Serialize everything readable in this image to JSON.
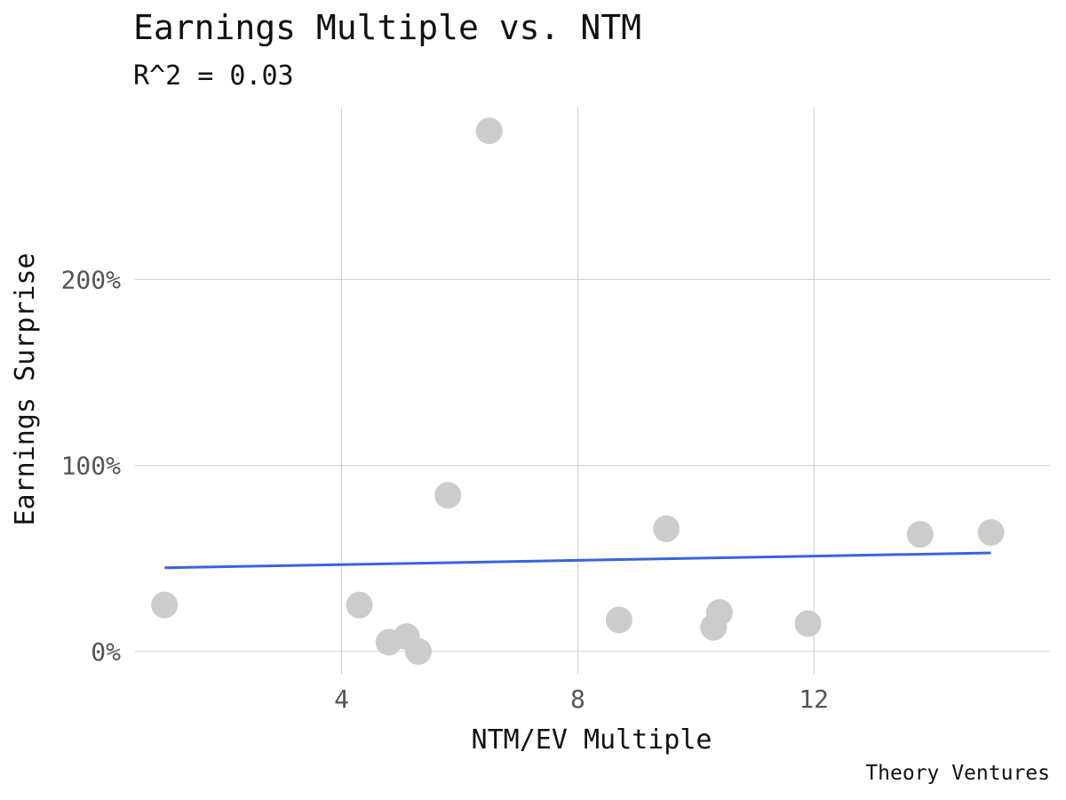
{
  "chart_data": {
    "type": "scatter",
    "title": "Earnings Multiple vs. NTM",
    "subtitle": "R^2 = 0.03",
    "xlabel": "NTM/EV Multiple",
    "ylabel": "Earnings Surprise",
    "caption": "Theory Ventures",
    "xlim": [
      0.5,
      16
    ],
    "ylim": [
      -12,
      293
    ],
    "x_ticks": [
      4,
      8,
      12
    ],
    "x_tick_labels": [
      "4",
      "8",
      "12"
    ],
    "y_ticks": [
      0,
      100,
      200
    ],
    "y_tick_labels": [
      "0%",
      "100%",
      "200%"
    ],
    "grid": true,
    "legend": "none",
    "point_color": "#cccccc",
    "trend_color": "#3a63e0",
    "points": [
      {
        "x": 1.0,
        "y": 25
      },
      {
        "x": 4.3,
        "y": 25
      },
      {
        "x": 4.8,
        "y": 5
      },
      {
        "x": 5.1,
        "y": 8
      },
      {
        "x": 5.3,
        "y": 0
      },
      {
        "x": 5.8,
        "y": 84
      },
      {
        "x": 6.5,
        "y": 280
      },
      {
        "x": 8.7,
        "y": 17
      },
      {
        "x": 9.5,
        "y": 66
      },
      {
        "x": 10.3,
        "y": 13
      },
      {
        "x": 10.4,
        "y": 21
      },
      {
        "x": 11.9,
        "y": 15
      },
      {
        "x": 13.8,
        "y": 63
      },
      {
        "x": 15.0,
        "y": 64
      }
    ],
    "trend_line": {
      "x": [
        1.0,
        15.0
      ],
      "y": [
        45,
        53
      ]
    }
  }
}
